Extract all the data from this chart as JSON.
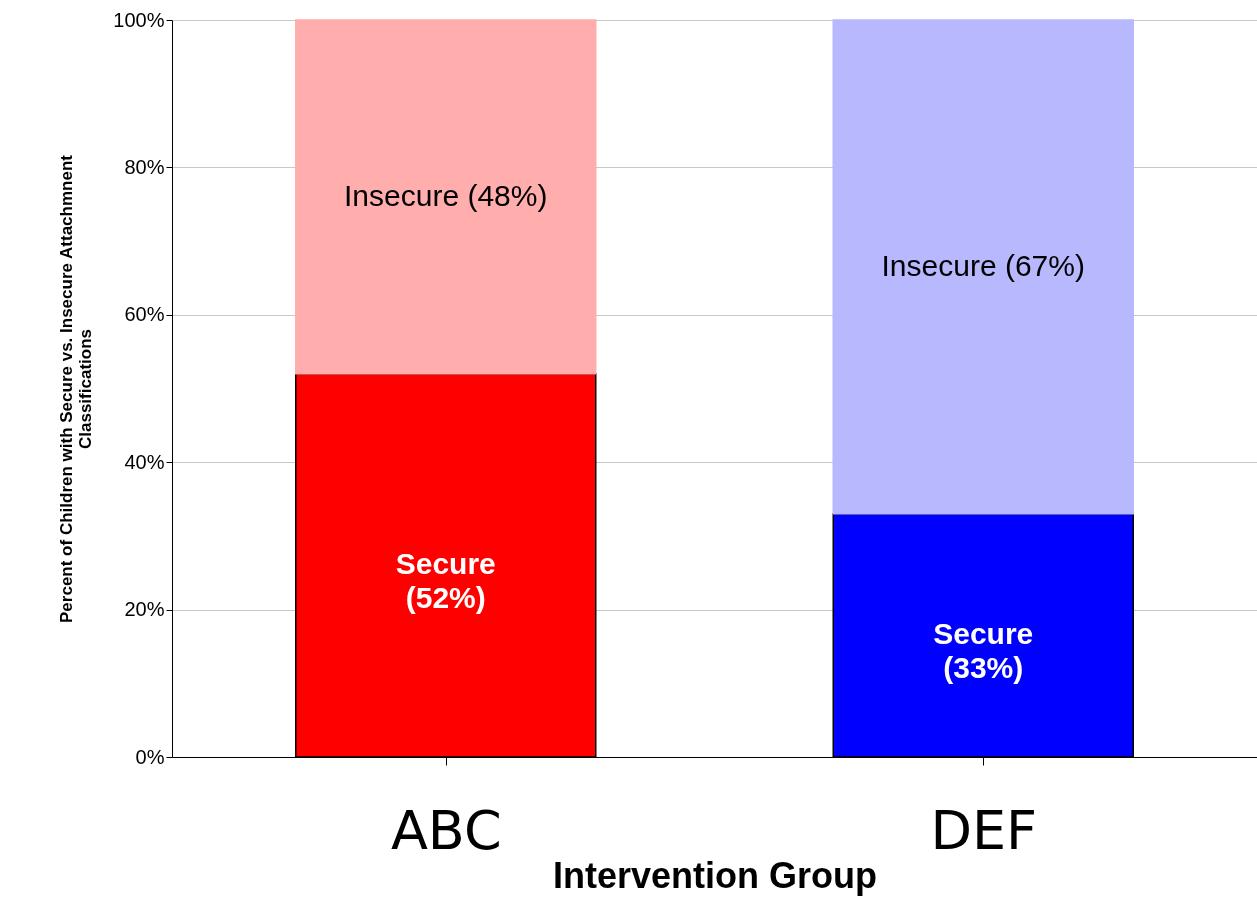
{
  "chart_data": {
    "type": "bar",
    "stacked": true,
    "categories": [
      "ABC",
      "DEF"
    ],
    "xlabel": "Intervention Group",
    "ylabel": "Percent of Children with Secure vs. Insecure Attachmnent\nClassifications",
    "ylim": [
      0,
      100
    ],
    "yticks": [
      {
        "value": 0,
        "label": "0%"
      },
      {
        "value": 20,
        "label": "20%"
      },
      {
        "value": 40,
        "label": "40%"
      },
      {
        "value": 60,
        "label": "60%"
      },
      {
        "value": 80,
        "label": "80%"
      },
      {
        "value": 100,
        "label": "100%"
      }
    ],
    "grid": "y",
    "series": [
      {
        "name": "Secure",
        "colors": [
          "#ff0000",
          "#0000ff"
        ],
        "values": [
          52,
          33
        ],
        "value_labels": [
          "(52%)",
          "(33%)"
        ]
      },
      {
        "name": "Insecure",
        "colors": [
          "#ffadad",
          "#b8b8ff"
        ],
        "values": [
          48,
          67
        ],
        "value_labels": [
          "(48%)",
          "(67%)"
        ]
      }
    ]
  }
}
